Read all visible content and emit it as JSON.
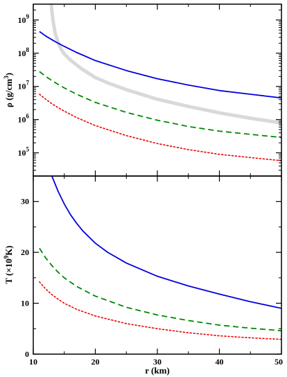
{
  "chart_data": [
    {
      "type": "line",
      "panel": "top",
      "ylabel_main": "ρ (g/cm",
      "ylabel_sup": "3",
      "ylabel_close": ")",
      "xlim": [
        10,
        50
      ],
      "ylim": [
        20000,
        3000000000
      ],
      "yscale": "log",
      "yticks": [
        {
          "base": "10",
          "exp": "5",
          "value": 100000
        },
        {
          "base": "10",
          "exp": "6",
          "value": 1000000
        },
        {
          "base": "10",
          "exp": "7",
          "value": 10000000
        },
        {
          "base": "10",
          "exp": "8",
          "value": 100000000
        },
        {
          "base": "10",
          "exp": "9",
          "value": 1000000000
        }
      ],
      "grid": false,
      "series": [
        {
          "style": "solid",
          "color": "#0000dd",
          "x": [
            11,
            12,
            13,
            14,
            15,
            17,
            20,
            25,
            30,
            35,
            40,
            45,
            50
          ],
          "y": [
            450000000,
            330000000,
            255000000,
            200000000,
            160000000,
            105000000,
            60000000,
            30000000,
            17000000,
            11000000,
            7500000,
            5800000,
            4500000
          ]
        },
        {
          "style": "dashed",
          "color": "#008800",
          "x": [
            11,
            12,
            13,
            14,
            15,
            17,
            20,
            25,
            30,
            35,
            40,
            45,
            50
          ],
          "y": [
            28000000,
            20000000,
            15000000,
            11500000,
            9000000,
            5800000,
            3300000,
            1650000,
            960000,
            620000,
            450000,
            360000,
            290000
          ]
        },
        {
          "style": "dotted",
          "color": "#ee0000",
          "x": [
            11,
            12,
            13,
            14,
            15,
            17,
            20,
            25,
            30,
            35,
            40,
            45,
            50
          ],
          "y": [
            5800000,
            4100000,
            3000000,
            2300000,
            1800000,
            1150000,
            660000,
            330000,
            190000,
            125000,
            90000,
            72000,
            58000
          ]
        },
        {
          "style": "thick",
          "color": "#d9d9d9",
          "x": [
            12.9,
            13.0,
            13.2,
            13.5,
            14,
            14.5,
            15,
            16,
            17,
            18,
            20,
            22,
            25,
            30,
            35,
            40,
            45,
            50
          ],
          "y": [
            3000000000,
            1800000000,
            900000000,
            420000000,
            210000000,
            130000000,
            95000000,
            62000000,
            44000000,
            32000000,
            18500000,
            12800000,
            8000000,
            4100000,
            2500000,
            1600000,
            1100000,
            800000
          ]
        }
      ]
    },
    {
      "type": "line",
      "panel": "bottom",
      "ylabel_main": "T (×10",
      "ylabel_sup": "9",
      "ylabel_close": "K)",
      "xlabel": "r (km)",
      "xlim": [
        10,
        50
      ],
      "ylim": [
        0,
        35
      ],
      "yscale": "linear",
      "xticks": [
        "10",
        "20",
        "30",
        "40",
        "50"
      ],
      "xtick_values": [
        10,
        20,
        30,
        40,
        50
      ],
      "yticks": [
        "0",
        "10",
        "20",
        "30"
      ],
      "ytick_values": [
        0,
        10,
        20,
        30
      ],
      "grid": false,
      "series": [
        {
          "style": "solid",
          "color": "#0000dd",
          "x": [
            13,
            14,
            15,
            16,
            17,
            18,
            20,
            22,
            25,
            30,
            35,
            40,
            45,
            50
          ],
          "y": [
            35,
            32,
            29.5,
            27.4,
            25.7,
            24.2,
            21.8,
            20.0,
            17.9,
            15.3,
            13.4,
            11.8,
            10.3,
            9.0
          ]
        },
        {
          "style": "dashed",
          "color": "#008800",
          "x": [
            11,
            12,
            13,
            14,
            15,
            17,
            20,
            25,
            30,
            35,
            40,
            45,
            50
          ],
          "y": [
            20.8,
            18.9,
            17.4,
            16.1,
            15.0,
            13.3,
            11.4,
            9.2,
            7.7,
            6.6,
            5.7,
            5.1,
            4.6
          ]
        },
        {
          "style": "dotted",
          "color": "#ee0000",
          "x": [
            11,
            12,
            13,
            14,
            15,
            17,
            20,
            25,
            30,
            35,
            40,
            45,
            50
          ],
          "y": [
            14.2,
            12.8,
            11.7,
            10.8,
            10.0,
            8.8,
            7.5,
            6.0,
            5.0,
            4.2,
            3.6,
            3.2,
            2.9
          ]
        }
      ]
    }
  ]
}
